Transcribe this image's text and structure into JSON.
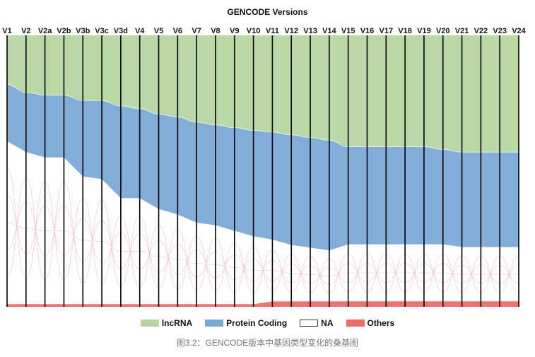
{
  "chart_data": {
    "type": "sankey",
    "title": "GENCODE Versions",
    "versions": [
      "V1",
      "V2",
      "V2a",
      "V2b",
      "V3b",
      "V3c",
      "V3d",
      "V4",
      "V5",
      "V6",
      "V7",
      "V8",
      "V9",
      "V10",
      "V11",
      "V12",
      "V13",
      "V14",
      "V15",
      "V16",
      "V17",
      "V18",
      "V19",
      "V20",
      "V21",
      "V22",
      "V23",
      "V24"
    ],
    "categories": [
      {
        "name": "lncRNA",
        "color": "#b5d6a0"
      },
      {
        "name": "Protein Coding",
        "color": "#7aa9d6"
      },
      {
        "name": "NA",
        "color": "#ffffff",
        "stroke": "#333333"
      },
      {
        "name": "Others",
        "color": "#ec6a6a"
      }
    ],
    "values": {
      "lncRNA": [
        18,
        21,
        22,
        22,
        24,
        24,
        26,
        27,
        29,
        30,
        32,
        33,
        34,
        35,
        36,
        37,
        38,
        39,
        41,
        41,
        41,
        41,
        41,
        42,
        43,
        43,
        43,
        43
      ],
      "Protein Coding": [
        21,
        22,
        23,
        23,
        28,
        29,
        34,
        33,
        35,
        36,
        37,
        37,
        38,
        39,
        40,
        41,
        41,
        41,
        36,
        36,
        36,
        36,
        36,
        35,
        35,
        35,
        35,
        35
      ],
      "NA": [
        60,
        56,
        54,
        54,
        47,
        46,
        39,
        39,
        35,
        33,
        30,
        29,
        27,
        25,
        23,
        21,
        20,
        19,
        21,
        21,
        21,
        21,
        21,
        21,
        20,
        20,
        20,
        20
      ],
      "Others": [
        1,
        1,
        1,
        1,
        1,
        1,
        1,
        1,
        1,
        1,
        1,
        1,
        1,
        1,
        2,
        2,
        2,
        2,
        2,
        2,
        2,
        2,
        2,
        2,
        2,
        2,
        2,
        2
      ]
    }
  },
  "caption": "图3.2：GENCODE版本中基因类型变化的桑基图"
}
